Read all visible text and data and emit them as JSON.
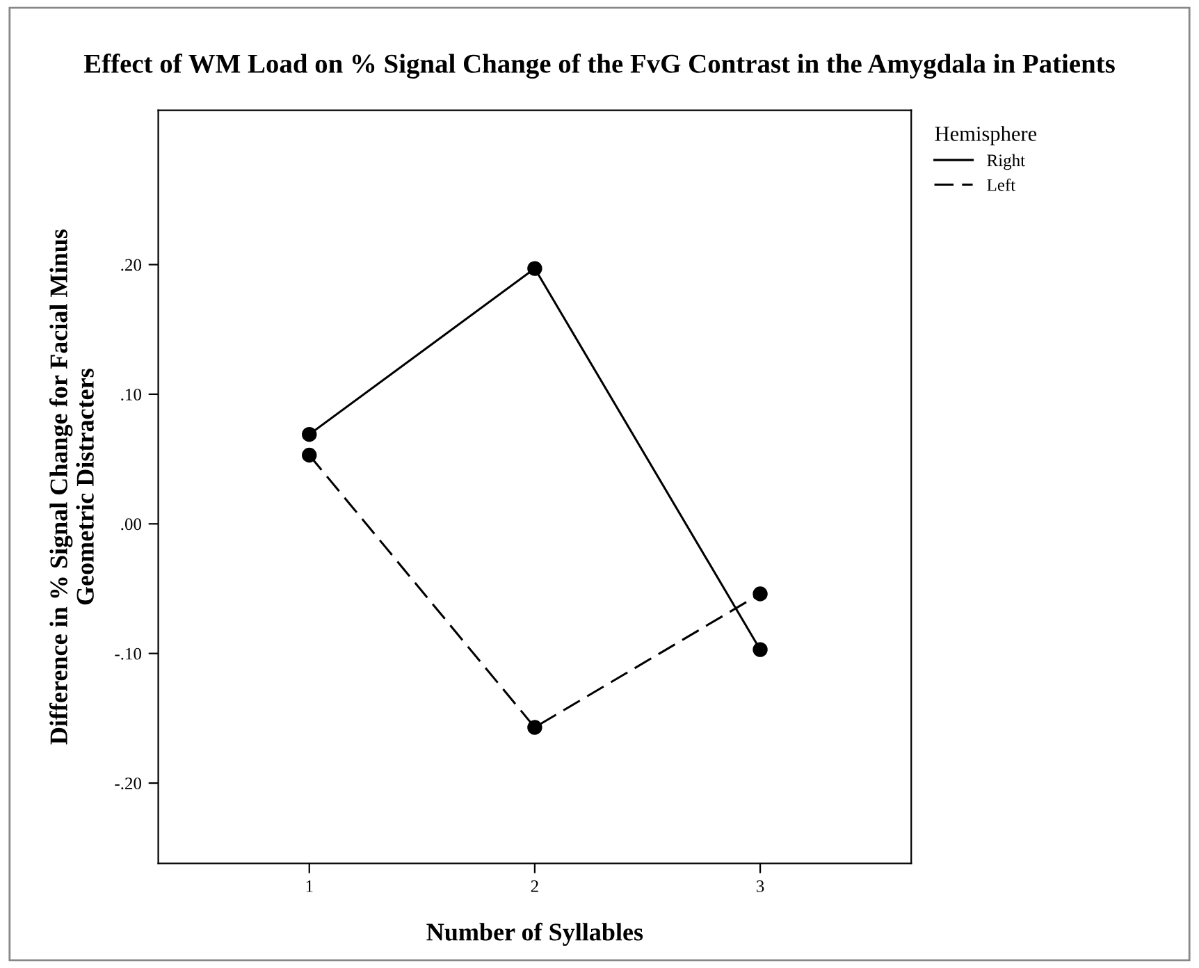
{
  "chart_data": {
    "type": "line",
    "title": "Effect of WM Load on % Signal Change of the FvG Contrast in the Amygdala in Patients",
    "xlabel": "Number of Syllables",
    "ylabel": "Difference in % Signal Change for Facial Minus\nGeometric Distracters",
    "legend_title": "Hemisphere",
    "legend": "top right",
    "marker": "circle",
    "grid": false,
    "x": [
      1,
      2,
      3
    ],
    "series": [
      {
        "name": "Right",
        "color": "#000000",
        "line_style": "solid",
        "values": [
          0.069,
          0.197,
          -0.097
        ]
      },
      {
        "name": "Left",
        "color": "#000000",
        "line_style": "dashed",
        "values": [
          0.053,
          -0.157,
          -0.054
        ]
      }
    ],
    "xlim": [
      0.33,
      3.67
    ],
    "ylim": [
      -0.262,
      0.319
    ],
    "xticks": [
      1,
      2,
      3
    ],
    "yticks": [
      {
        "value": -0.2,
        "label": "-.20"
      },
      {
        "value": -0.1,
        "label": "-.10"
      },
      {
        "value": 0,
        "label": ".00"
      },
      {
        "value": 0.1,
        "label": ".10"
      },
      {
        "value": 0.2,
        "label": ".20"
      }
    ]
  }
}
